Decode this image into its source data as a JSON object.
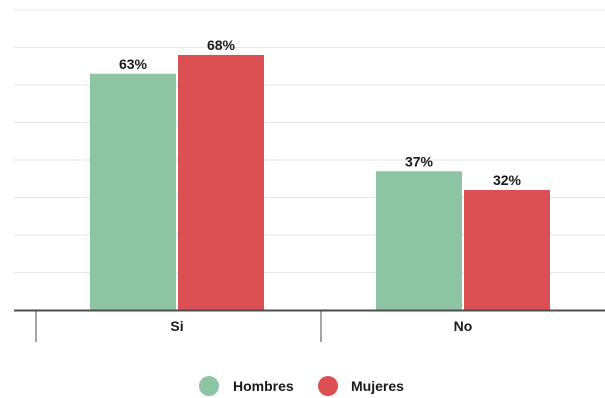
{
  "chart_data": {
    "type": "bar",
    "categories": [
      "Si",
      "No"
    ],
    "series": [
      {
        "name": "Hombres",
        "values": [
          63,
          37
        ],
        "color": "#8cc4a4"
      },
      {
        "name": "Mujeres",
        "values": [
          68,
          32
        ],
        "color": "#dc5053"
      }
    ],
    "value_labels": [
      [
        "63%",
        "37%"
      ],
      [
        "68%",
        "32%"
      ]
    ],
    "ylim": [
      0,
      80
    ],
    "grid": true,
    "legend_position": "bottom-center",
    "colors": {
      "grid": "#e6e6e6",
      "axis": "#4d4d4d"
    }
  }
}
